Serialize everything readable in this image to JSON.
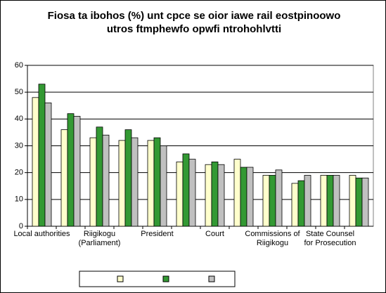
{
  "chart_data": {
    "type": "bar",
    "title": "Fiosa ta ibohos (%) unt cpce se oior iawe rail eostpinoowo utros ftmphewfo opwfi ntrohohlvtti",
    "categories": [
      "Local authorities",
      null,
      "Riigikogu\n(Parliament)",
      null,
      "President",
      null,
      "Court",
      null,
      "Commissions of\nRiigikogu",
      null,
      "State Counsel\nfor Prosecution",
      null
    ],
    "series": [
      {
        "color": "#ffffcc",
        "values": [
          48,
          36,
          33,
          32,
          32,
          24,
          23,
          25,
          19,
          16,
          19,
          19
        ]
      },
      {
        "color": "#339933",
        "values": [
          53,
          42,
          37,
          36,
          33,
          27,
          24,
          22,
          19,
          17,
          19,
          18
        ]
      },
      {
        "color": "#c0c0c0",
        "values": [
          46,
          41,
          34,
          33,
          30,
          25,
          23,
          22,
          21,
          19,
          19,
          18
        ]
      }
    ],
    "ylim": [
      0,
      60
    ],
    "yticks": [
      0,
      10,
      20,
      30,
      40,
      50,
      60
    ],
    "grid": true,
    "legend": "bottom"
  }
}
